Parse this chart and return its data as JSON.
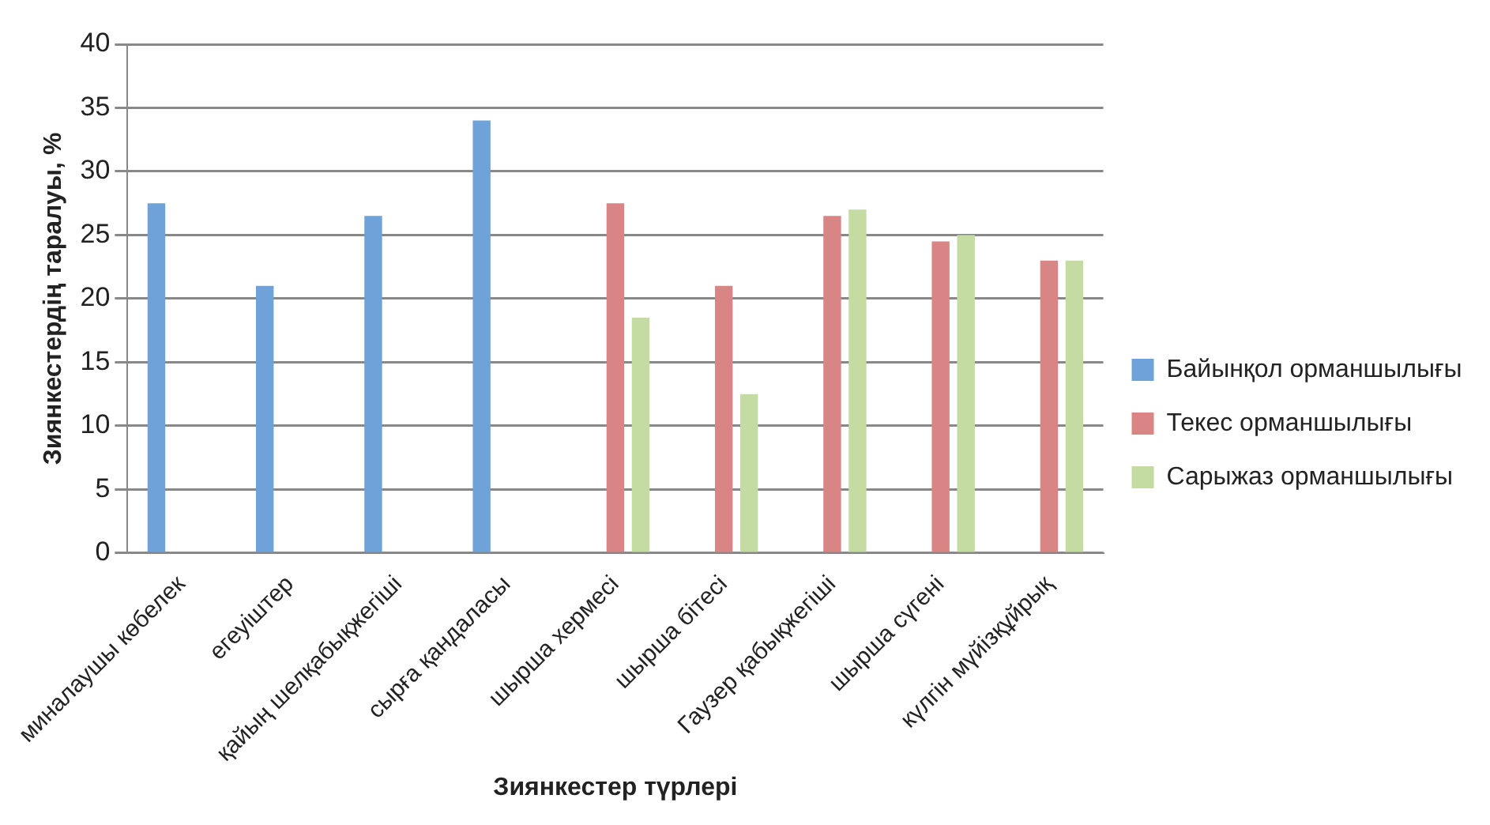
{
  "chart_data": {
    "type": "bar",
    "ylabel": "Зиянкестердің таралуы, %",
    "xlabel": "Зиянкестер түрлері",
    "categories": [
      "миналаушы көбелек",
      "егеуіштер",
      "қайың шелқабықжегіші",
      "сырға қандаласы",
      "шырша хермесі",
      "шырша бітесі",
      "Гаузер қабықжегіші",
      "шырша сүгені",
      "күлгін мүйізқұйрық"
    ],
    "series": [
      {
        "name": "Байынқол орманшылығы",
        "color": "#6fa2d9",
        "values": [
          27.5,
          21,
          26.5,
          34,
          null,
          null,
          null,
          null,
          null
        ]
      },
      {
        "name": "Текес орманшылығы",
        "color": "#d98585",
        "values": [
          null,
          null,
          null,
          null,
          27.5,
          21,
          26.5,
          24.5,
          23
        ]
      },
      {
        "name": "Сарыжаз орманшылығы",
        "color": "#c4dca2",
        "values": [
          null,
          null,
          null,
          null,
          18.5,
          12.5,
          27,
          25,
          23
        ]
      }
    ],
    "ylim": [
      0,
      40
    ],
    "yticks": [
      0,
      5,
      10,
      15,
      20,
      25,
      30,
      35,
      40
    ],
    "grid": "y",
    "legend": "right"
  }
}
